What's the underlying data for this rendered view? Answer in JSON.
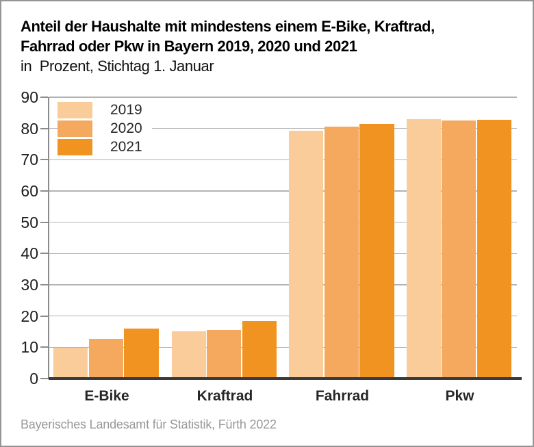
{
  "header": {
    "title_line1": "Anteil der Haushalte mit mindestens einem E-Bike, Kraftrad,",
    "title_line2": "Fahrrad oder Pkw in Bayern 2019, 2020 und 2021",
    "subtitle": "in  Prozent, Stichtag 1. Januar"
  },
  "footer": {
    "source": "Bayerisches Landesamt für Statistik, Fürth 2022"
  },
  "colors": {
    "series_2019": "#FACC99",
    "series_2020": "#F5A95E",
    "series_2021": "#F19321",
    "gridline": "#b2b2b2",
    "axis": "#8c8c8c",
    "baseline": "#3a3a3a"
  },
  "chart_data": {
    "type": "bar",
    "title": "Anteil der Haushalte mit mindestens einem E-Bike, Kraftrad, Fahrrad oder Pkw in Bayern 2019, 2020 und 2021",
    "subtitle": "in Prozent, Stichtag 1. Januar",
    "categories": [
      "E-Bike",
      "Kraftrad",
      "Fahrrad",
      "Pkw"
    ],
    "series": [
      {
        "name": "2019",
        "color": "#FACC99",
        "values": [
          9.8,
          15.2,
          79.3,
          82.9
        ]
      },
      {
        "name": "2020",
        "color": "#F5A95E",
        "values": [
          12.7,
          15.5,
          80.5,
          82.5
        ]
      },
      {
        "name": "2021",
        "color": "#F19321",
        "values": [
          15.9,
          18.4,
          81.4,
          82.8
        ]
      }
    ],
    "ylim": [
      0,
      90
    ],
    "ytick_step": 10,
    "yticks": [
      0,
      10,
      20,
      30,
      40,
      50,
      60,
      70,
      80,
      90
    ],
    "xlabel": "",
    "ylabel": "",
    "grid": "horizontal",
    "legend_position": "top-left"
  }
}
